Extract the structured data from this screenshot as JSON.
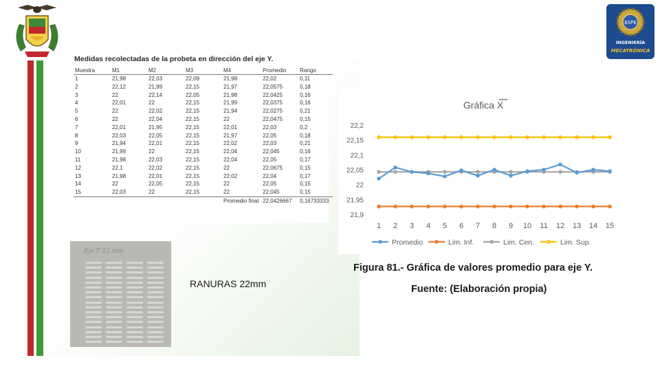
{
  "table": {
    "title": "Medidas recolectadas de la probeta en dirección del eje Y.",
    "headers": [
      "Muestra",
      "M1",
      "M2",
      "M3",
      "M4",
      "Promedio",
      "Rango"
    ],
    "rows": [
      [
        "1",
        "21,98",
        "22,03",
        "22,09",
        "21,98",
        "22,02",
        "0,11"
      ],
      [
        "2",
        "22,12",
        "21,99",
        "22,15",
        "21,97",
        "22,0575",
        "0,18"
      ],
      [
        "3",
        "22",
        "22,14",
        "22,05",
        "21,98",
        "22,0425",
        "0,16"
      ],
      [
        "4",
        "22,01",
        "22",
        "22,15",
        "21,99",
        "22,0375",
        "0,16"
      ],
      [
        "5",
        "22",
        "22,02",
        "22,15",
        "21,94",
        "22,0275",
        "0,21"
      ],
      [
        "6",
        "22",
        "22,04",
        "22,15",
        "22",
        "22,0475",
        "0,15"
      ],
      [
        "7",
        "22,01",
        "21,95",
        "22,15",
        "22,01",
        "22,03",
        "0,2"
      ],
      [
        "8",
        "22,03",
        "22,05",
        "22,15",
        "21,97",
        "22,05",
        "0,18"
      ],
      [
        "9",
        "21,94",
        "22,01",
        "22,15",
        "22,02",
        "22,03",
        "0,21"
      ],
      [
        "10",
        "21,99",
        "22",
        "22,15",
        "22,04",
        "22,045",
        "0,16"
      ],
      [
        "11",
        "21,98",
        "22,03",
        "22,15",
        "22,04",
        "22,05",
        "0,17"
      ],
      [
        "12",
        "22,1",
        "22,02",
        "22,15",
        "22",
        "22,0675",
        "0,15"
      ],
      [
        "13",
        "21,98",
        "22,01",
        "22,15",
        "22,02",
        "22,04",
        "0,17"
      ],
      [
        "14",
        "22",
        "22,05",
        "22,15",
        "22",
        "22,05",
        "0,15"
      ],
      [
        "15",
        "22,03",
        "22",
        "22,15",
        "22",
        "22,045",
        "0,15"
      ]
    ],
    "final_label": "Promedio final",
    "final_promedio": "22,0426667",
    "final_rango": "0,16733333"
  },
  "photo": {
    "label": "RANURAS 22mm",
    "handwriting": "Eje Y 22 mm"
  },
  "captions": {
    "figure": "Figura 81.- Gráfica de valores promedio para eje Y.",
    "source": "Fuente: (Elaboración propia)"
  },
  "logos": {
    "right_top": "ESPE",
    "right_mid": "INGENIERÍA",
    "right_bottom": "MECATRÓNICA"
  },
  "chart_data": {
    "type": "line",
    "title": "Gráfica X",
    "categories": [
      "1",
      "2",
      "3",
      "4",
      "5",
      "6",
      "7",
      "8",
      "9",
      "10",
      "11",
      "12",
      "13",
      "14",
      "15"
    ],
    "ylim": [
      21.9,
      22.2
    ],
    "yticks": [
      "21,9",
      "21,95",
      "22",
      "22,05",
      "22,1",
      "22,15",
      "22,2"
    ],
    "legend_position": "bottom",
    "grid": false,
    "series": [
      {
        "name": "Promedio",
        "color": "#5b9bd5",
        "values": [
          22.02,
          22.0575,
          22.0425,
          22.0375,
          22.0275,
          22.0475,
          22.03,
          22.05,
          22.03,
          22.045,
          22.05,
          22.0675,
          22.04,
          22.05,
          22.045
        ]
      },
      {
        "name": "Lim. Inf.",
        "color": "#ed7d31",
        "values": [
          21.9265,
          21.9265,
          21.9265,
          21.9265,
          21.9265,
          21.9265,
          21.9265,
          21.9265,
          21.9265,
          21.9265,
          21.9265,
          21.9265,
          21.9265,
          21.9265,
          21.9265
        ]
      },
      {
        "name": "Lim. Cen.",
        "color": "#a5a5a5",
        "values": [
          22.0427,
          22.0427,
          22.0427,
          22.0427,
          22.0427,
          22.0427,
          22.0427,
          22.0427,
          22.0427,
          22.0427,
          22.0427,
          22.0427,
          22.0427,
          22.0427,
          22.0427
        ]
      },
      {
        "name": "Lim. Sup.",
        "color": "#ffc000",
        "values": [
          22.159,
          22.159,
          22.159,
          22.159,
          22.159,
          22.159,
          22.159,
          22.159,
          22.159,
          22.159,
          22.159,
          22.159,
          22.159,
          22.159,
          22.159
        ]
      }
    ]
  }
}
